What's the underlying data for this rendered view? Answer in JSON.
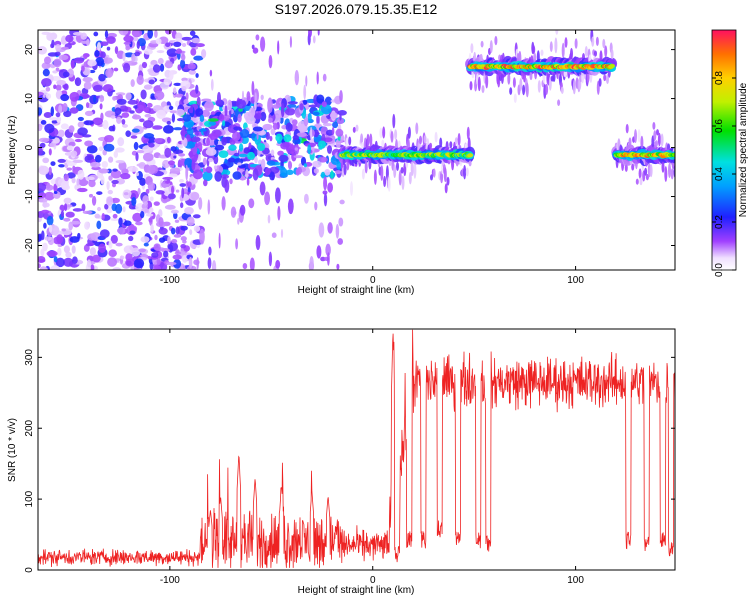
{
  "title": "S197.2026.079.15.35.E12",
  "chart_data": [
    {
      "type": "heatmap",
      "panel": "spectrogram",
      "xlabel": "Height of straight line (km)",
      "ylabel": "Frequency (Hz)",
      "xlim": [
        -165,
        149
      ],
      "ylim": [
        -25,
        24
      ],
      "xticks": [
        -100,
        0,
        100
      ],
      "yticks": [
        -20,
        -10,
        0,
        10,
        20
      ],
      "colorbar": {
        "label": "Normalized spectral amplitude",
        "range": [
          0,
          1
        ],
        "ticks": [
          "0.0",
          "0.2",
          "0.4",
          "0.6",
          "0.8"
        ]
      },
      "features": [
        {
          "name": "noise-field",
          "x_range": [
            -165,
            -85
          ],
          "freq_range": [
            -25,
            24
          ],
          "amplitude": 0.15
        },
        {
          "name": "transition-band",
          "x_range": [
            -95,
            -15
          ],
          "freq_range": [
            -6,
            10
          ],
          "amplitude": 0.35
        },
        {
          "name": "low-band",
          "x_range": [
            -15,
            48
          ],
          "freq": -1.5,
          "amplitude": 0.75
        },
        {
          "name": "high-band",
          "x_range": [
            48,
            118
          ],
          "freq": 16.5,
          "amplitude": 0.95
        },
        {
          "name": "low-band-late",
          "x_range": [
            120,
            149
          ],
          "freq": -1.5,
          "amplitude": 0.9
        }
      ]
    },
    {
      "type": "line",
      "panel": "snr",
      "xlabel": "Height of straight line (km)",
      "ylabel": "SNR (10 * v/v)",
      "xlim": [
        -165,
        149
      ],
      "ylim": [
        0,
        340
      ],
      "xticks": [
        -100,
        0,
        100
      ],
      "yticks": [
        0,
        100,
        200,
        300
      ],
      "series": [
        {
          "name": "SNR",
          "color": "#ee2222",
          "segments": [
            {
              "x_range": [
                -165,
                -85
              ],
              "mean": 18,
              "noise": 8
            },
            {
              "x_range": [
                -85,
                -15
              ],
              "mean": 40,
              "noise": 30,
              "spikes": [
                [
                  -80,
                  85
                ],
                [
                  -75,
                  105
                ],
                [
                  -66,
                  165
                ],
                [
                  -58,
                  130
                ],
                [
                  -45,
                  120
                ],
                [
                  -30,
                  112
                ],
                [
                  -22,
                  105
                ],
                [
                  -12,
                  95
                ]
              ]
            },
            {
              "x_range": [
                -15,
                8
              ],
              "mean": 35,
              "noise": 15
            },
            {
              "x_range": [
                8,
                20
              ],
              "mean": 190,
              "noise": 45,
              "spikes": [
                [
                  10,
                  340
                ]
              ]
            },
            {
              "x_range": [
                20,
                149
              ],
              "mean": 265,
              "noise": 25
            }
          ],
          "dropouts": [
            [
              12,
              10
            ],
            [
              18,
              30
            ],
            [
              25,
              30
            ],
            [
              33,
              45
            ],
            [
              42,
              30
            ],
            [
              52,
              30
            ],
            [
              57,
              25
            ],
            [
              126,
              30
            ],
            [
              135,
              25
            ],
            [
              143,
              30
            ],
            [
              147,
              20
            ]
          ]
        }
      ]
    }
  ]
}
